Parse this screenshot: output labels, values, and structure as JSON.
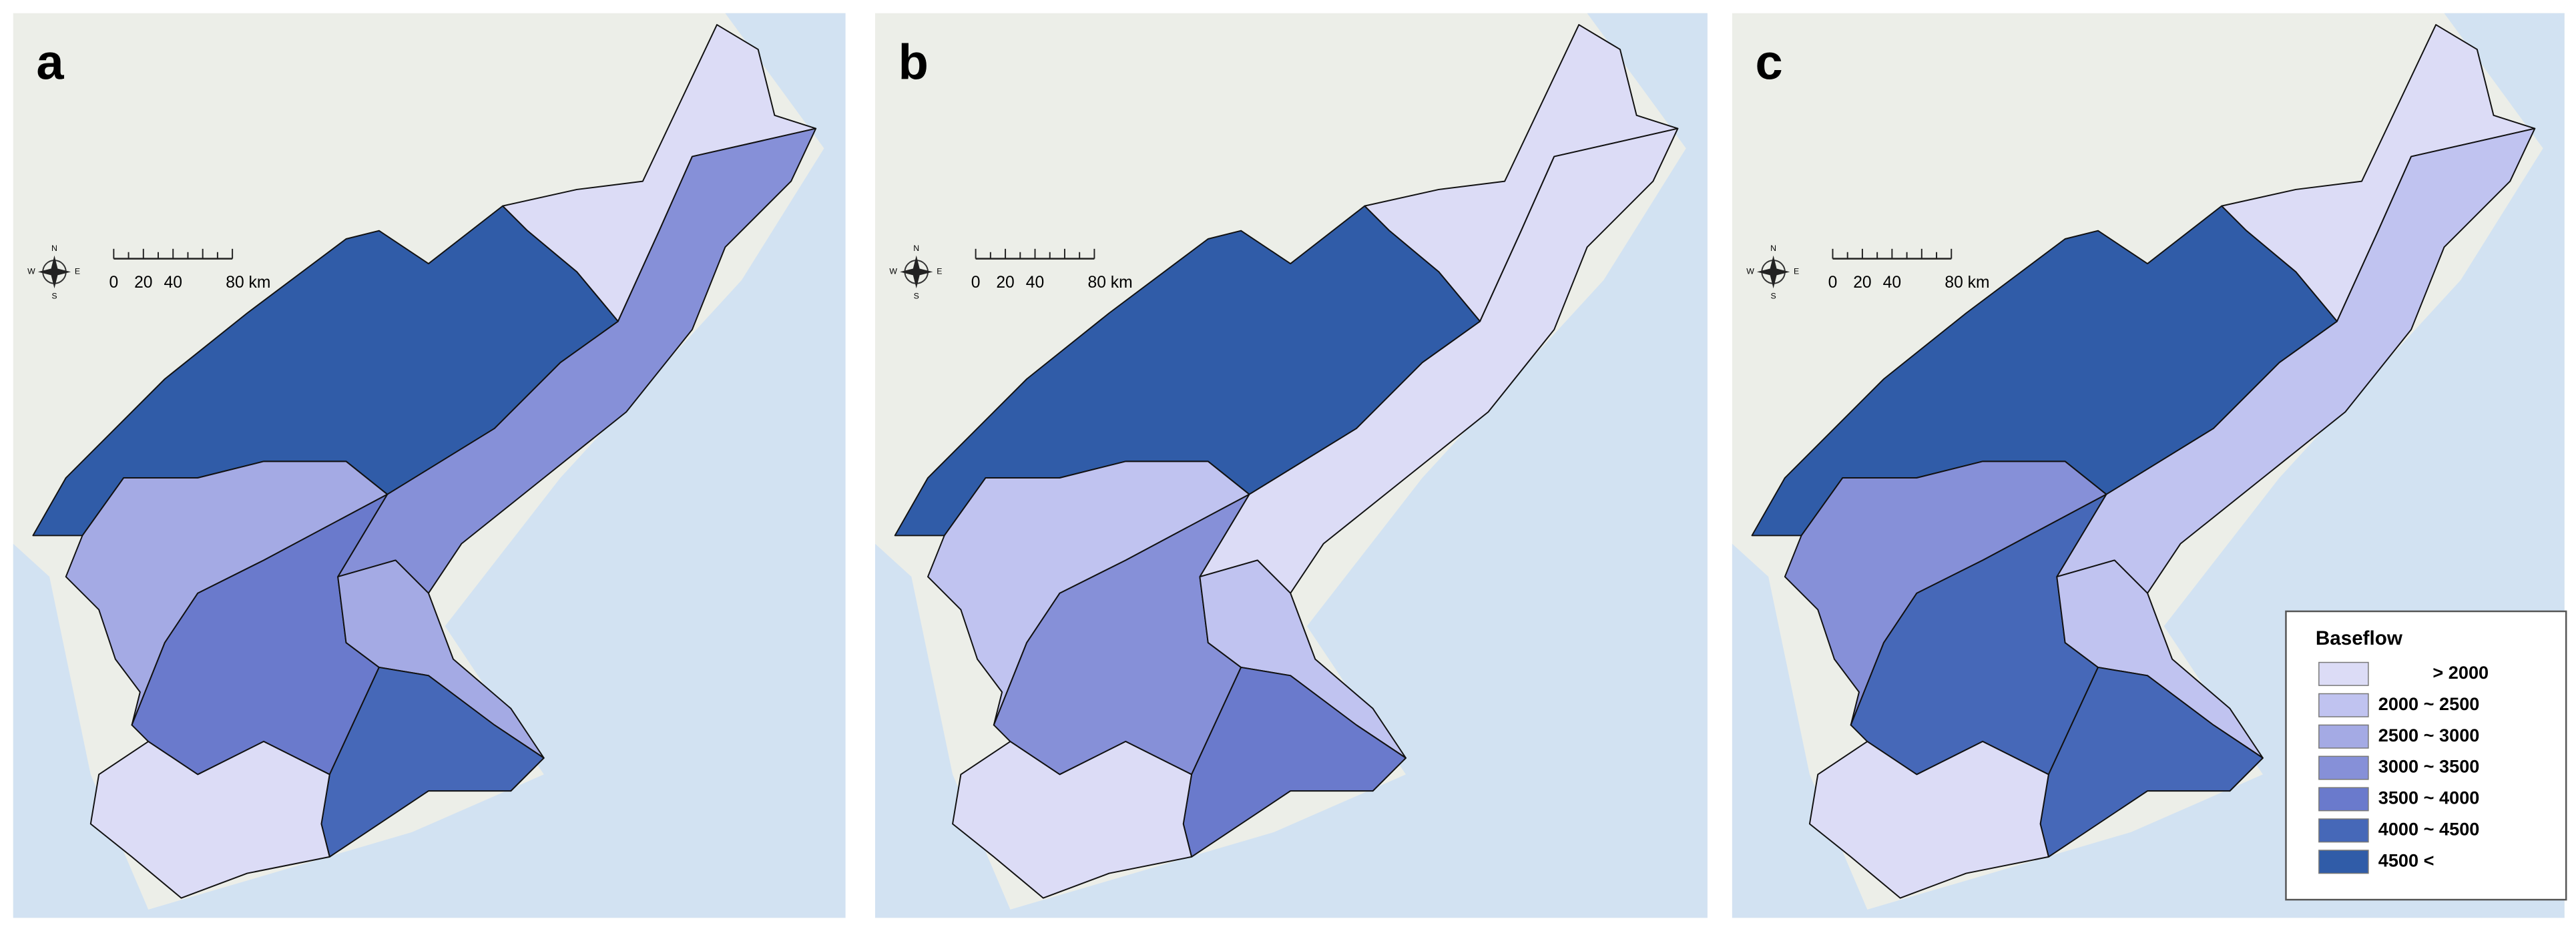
{
  "panels": [
    {
      "label": "a",
      "region_colors": [
        "#dcdcf6",
        "#8690d8",
        "#305ca8",
        "#a4aae4",
        "#6a7acc",
        "#a4aae4",
        "#4668b8",
        "#dcdcf6"
      ]
    },
    {
      "label": "b",
      "region_colors": [
        "#dcdcf6",
        "#dcdcf6",
        "#305ca8",
        "#c0c3f0",
        "#8690d8",
        "#c0c3f0",
        "#6a7acc",
        "#dcdcf6"
      ]
    },
    {
      "label": "c",
      "region_colors": [
        "#dcdcf6",
        "#c0c3f0",
        "#305ca8",
        "#8690d8",
        "#4668b8",
        "#c0c3f0",
        "#4668b8",
        "#dcdcf6"
      ]
    }
  ],
  "scale_bar": {
    "labels": [
      "0",
      "20",
      "40",
      "80 km"
    ]
  },
  "compass": {
    "n": "N",
    "s": "S",
    "e": "E",
    "w": "W"
  },
  "legend": {
    "title": "Baseflow",
    "items": [
      {
        "label": "> 2000",
        "color": "#dcdcf6"
      },
      {
        "label": "2000 ~ 2500",
        "color": "#c0c3f0"
      },
      {
        "label": "2500 ~ 3000",
        "color": "#a4aae4"
      },
      {
        "label": "3000 ~ 3500",
        "color": "#8690d8"
      },
      {
        "label": "3500 ~ 4000",
        "color": "#6a7acc"
      },
      {
        "label": "4000 ~ 4500",
        "color": "#4668b8"
      },
      {
        "label": "4500 <",
        "color": "#305ca8"
      }
    ]
  },
  "land_color": "#eceee8",
  "sea_color": "#d2e2f2"
}
